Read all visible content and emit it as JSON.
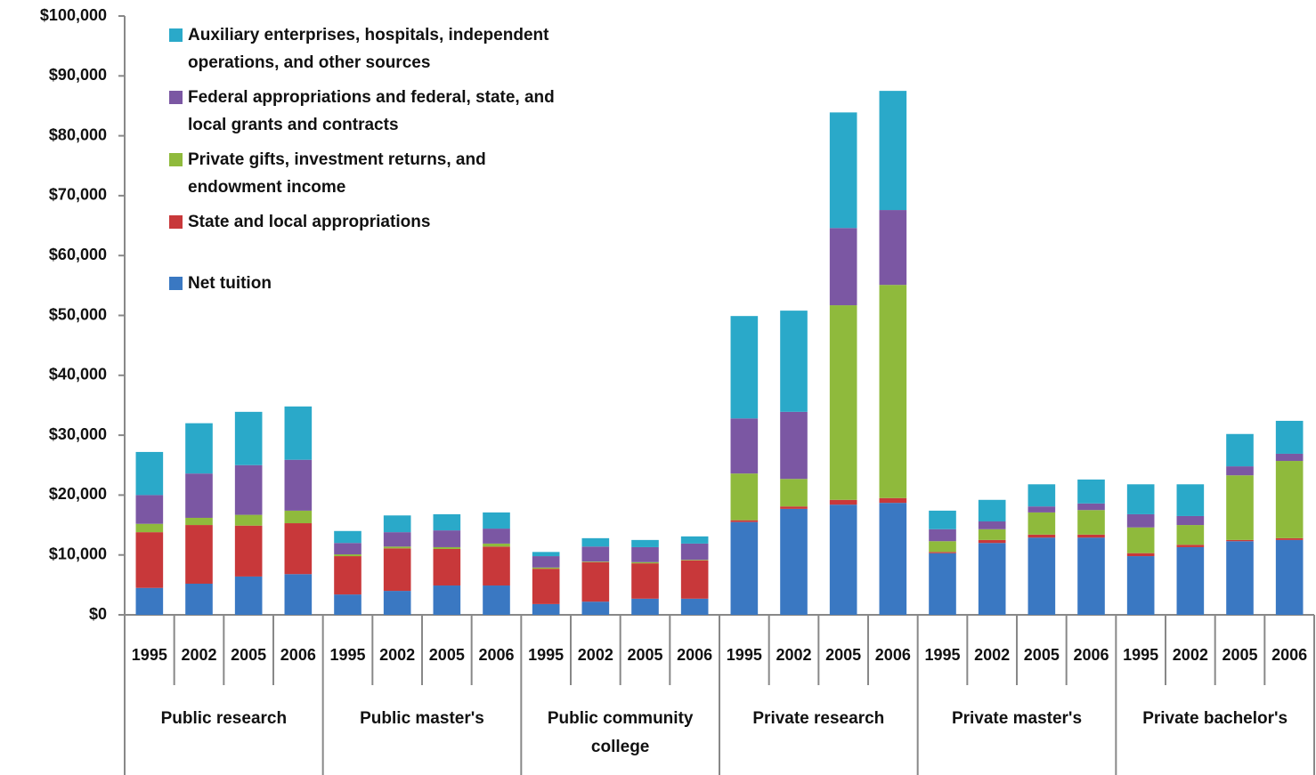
{
  "chart_data": {
    "type": "stacked-bar",
    "categories": [
      "1995",
      "2002",
      "2005",
      "2006",
      "1995",
      "2002",
      "2005",
      "2006",
      "1995",
      "2002",
      "2005",
      "2006",
      "1995",
      "2002",
      "2005",
      "2006",
      "1995",
      "2002",
      "2005",
      "2006",
      "1995",
      "2002",
      "2005",
      "2006"
    ],
    "groups": [
      "Public research",
      "Public master's",
      "Public community college",
      "Private research",
      "Private master's",
      "Private bachelor's"
    ],
    "series": [
      {
        "name": "Net tuition",
        "color": "#3a78c2",
        "values": [
          4500,
          5200,
          6400,
          6800,
          3400,
          4000,
          4900,
          4900,
          1800,
          2200,
          2700,
          2700,
          15500,
          17700,
          18400,
          18700,
          10300,
          12000,
          12900,
          12900,
          9800,
          11300,
          12300,
          12500
        ]
      },
      {
        "name": "State and local appropriations",
        "color": "#c8383a",
        "values": [
          9300,
          9800,
          8500,
          8500,
          6400,
          7100,
          6100,
          6500,
          5900,
          6600,
          5900,
          6400,
          300,
          400,
          800,
          800,
          200,
          500,
          500,
          500,
          500,
          400,
          200,
          300
        ]
      },
      {
        "name": "Private gifts, investment returns, and endowment income",
        "color": "#8fba3c",
        "values": [
          1400,
          1200,
          1800,
          2100,
          300,
          300,
          300,
          500,
          200,
          100,
          200,
          100,
          7800,
          4600,
          32500,
          35600,
          1800,
          1800,
          3700,
          4100,
          4300,
          3300,
          10800,
          12900
        ]
      },
      {
        "name": "Federal appropriations and federal, state, and local grants and contracts",
        "color": "#7b57a3",
        "values": [
          4800,
          7400,
          8300,
          8500,
          1900,
          2400,
          2800,
          2500,
          1900,
          2500,
          2500,
          2700,
          9200,
          11200,
          12900,
          12500,
          2000,
          1300,
          1000,
          1100,
          2200,
          1500,
          1500,
          1200
        ]
      },
      {
        "name": "Auxiliary enterprises, hospitals, independent operations, and other sources",
        "color": "#2aa9c9",
        "values": [
          7200,
          8400,
          8900,
          8900,
          2000,
          2800,
          2700,
          2700,
          700,
          1400,
          1200,
          1200,
          17100,
          16900,
          19300,
          19900,
          3100,
          3600,
          3700,
          4000,
          5000,
          5300,
          5400,
          5500
        ]
      }
    ],
    "ylim": [
      0,
      100000
    ],
    "yticks": [
      {
        "value": 0,
        "label": "$0"
      },
      {
        "value": 10000,
        "label": "$10,000"
      },
      {
        "value": 20000,
        "label": "$20,000"
      },
      {
        "value": 30000,
        "label": "$30,000"
      },
      {
        "value": 40000,
        "label": "$40,000"
      },
      {
        "value": 50000,
        "label": "$50,000"
      },
      {
        "value": 60000,
        "label": "$60,000"
      },
      {
        "value": 70000,
        "label": "$70,000"
      },
      {
        "value": 80000,
        "label": "$80,000"
      },
      {
        "value": 90000,
        "label": "$90,000"
      },
      {
        "value": 100000,
        "label": "$100,000"
      }
    ],
    "legend": "upper left"
  }
}
